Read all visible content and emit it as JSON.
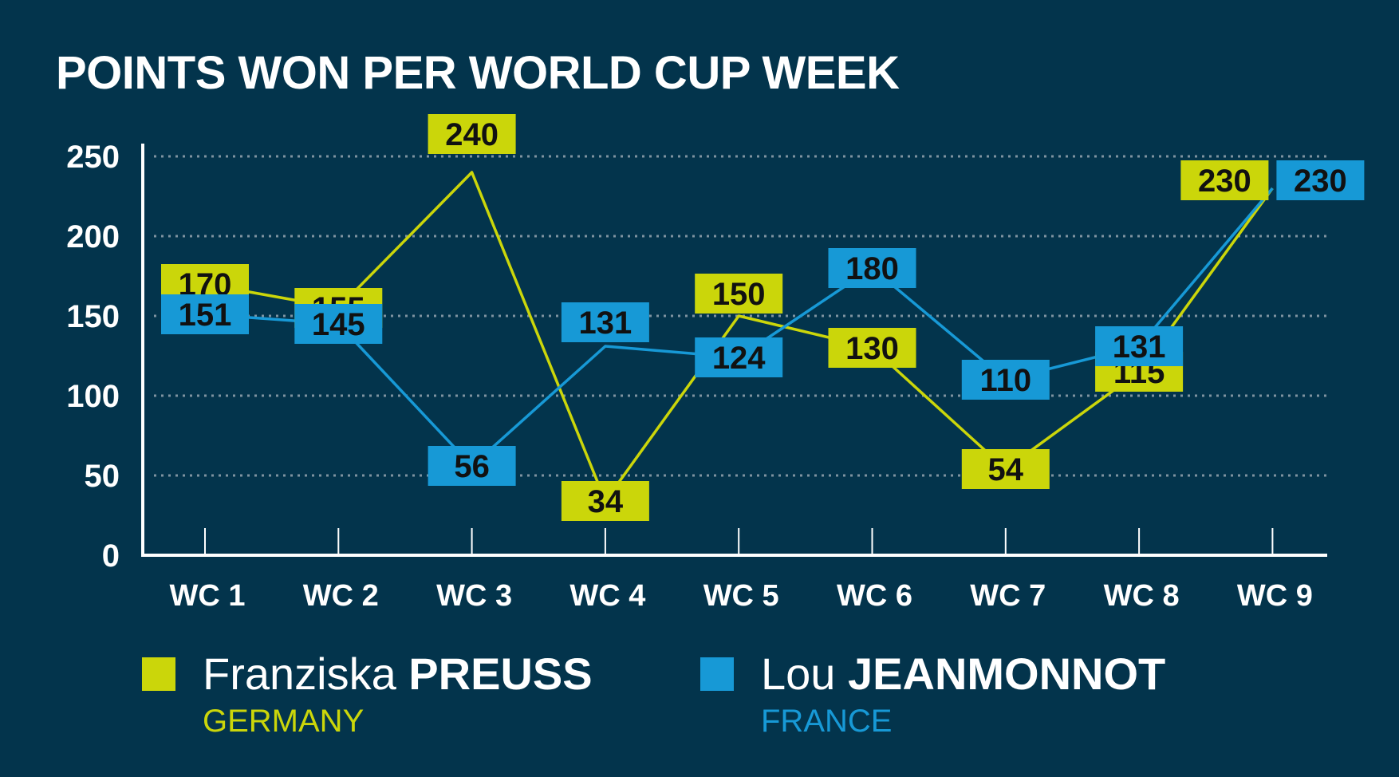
{
  "colors": {
    "background": "#03344c",
    "preuss": "#cbd60a",
    "jeanmonnot": "#1799d6",
    "axis": "#ffffff",
    "grid": "#7f93a0",
    "label_text": "#111111"
  },
  "chart_data": {
    "type": "line",
    "title": "POINTS WON PER WORLD CUP WEEK",
    "categories": [
      "WC 1",
      "WC 2",
      "WC 3",
      "WC 4",
      "WC 5",
      "WC 6",
      "WC 7",
      "WC 8",
      "WC 9"
    ],
    "ylim": [
      0,
      250
    ],
    "yticks": [
      "0",
      "50",
      "100",
      "150",
      "200",
      "250"
    ],
    "grid": true,
    "grid_style": "dotted",
    "data_labels": true,
    "legend_position": "bottom",
    "series": [
      {
        "first_name": "Franziska",
        "last_name": "PREUSS",
        "country": "GERMANY",
        "color": "#cbd60a",
        "values": [
          170,
          155,
          240,
          34,
          150,
          130,
          54,
          115,
          230
        ]
      },
      {
        "first_name": "Lou",
        "last_name": "JEANMONNOT",
        "country": "FRANCE",
        "color": "#1799d6",
        "values": [
          151,
          145,
          56,
          131,
          124,
          180,
          110,
          131,
          230
        ]
      }
    ]
  }
}
